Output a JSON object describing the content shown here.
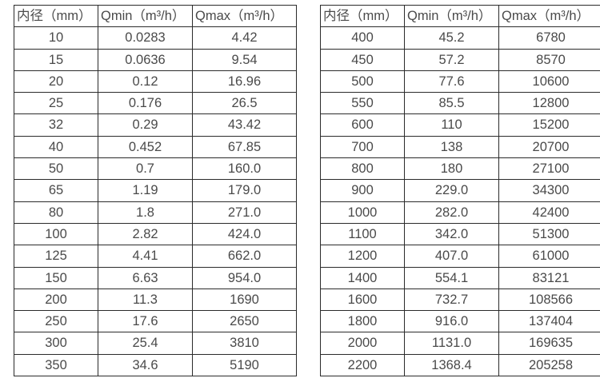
{
  "columns": [
    "内径（mm）",
    "Qmin（m³/h）",
    "Qmax（m³/h）"
  ],
  "colors": {
    "background": "#ffffff",
    "border": "#2b2b2b",
    "text": "#4a4a4a"
  },
  "tables": [
    {
      "name": "small-diameters",
      "rows": [
        [
          "10",
          "0.0283",
          "4.42"
        ],
        [
          "15",
          "0.0636",
          "9.54"
        ],
        [
          "20",
          "0.12",
          "16.96"
        ],
        [
          "25",
          "0.176",
          "26.5"
        ],
        [
          "32",
          "0.29",
          "43.42"
        ],
        [
          "40",
          "0.452",
          "67.85"
        ],
        [
          "50",
          "0.7",
          "160.0"
        ],
        [
          "65",
          "1.19",
          "179.0"
        ],
        [
          "80",
          "1.8",
          "271.0"
        ],
        [
          "100",
          "2.82",
          "424.0"
        ],
        [
          "125",
          "4.41",
          "662.0"
        ],
        [
          "150",
          "6.63",
          "954.0"
        ],
        [
          "200",
          "11.3",
          "1690"
        ],
        [
          "250",
          "17.6",
          "2650"
        ],
        [
          "300",
          "25.4",
          "3810"
        ],
        [
          "350",
          "34.6",
          "5190"
        ]
      ]
    },
    {
      "name": "large-diameters",
      "rows": [
        [
          "400",
          "45.2",
          "6780"
        ],
        [
          "450",
          "57.2",
          "8570"
        ],
        [
          "500",
          "77.6",
          "10600"
        ],
        [
          "550",
          "85.5",
          "12800"
        ],
        [
          "600",
          "110",
          "15200"
        ],
        [
          "700",
          "138",
          "20700"
        ],
        [
          "800",
          "180",
          "27100"
        ],
        [
          "900",
          "229.0",
          "34300"
        ],
        [
          "1000",
          "282.0",
          "42400"
        ],
        [
          "1100",
          "342.0",
          "51300"
        ],
        [
          "1200",
          "407.0",
          "61000"
        ],
        [
          "1400",
          "554.1",
          "83121"
        ],
        [
          "1600",
          "732.7",
          "108566"
        ],
        [
          "1800",
          "916.0",
          "137404"
        ],
        [
          "2000",
          "1131.0",
          "169635"
        ],
        [
          "2200",
          "1368.4",
          "205258"
        ]
      ]
    }
  ]
}
